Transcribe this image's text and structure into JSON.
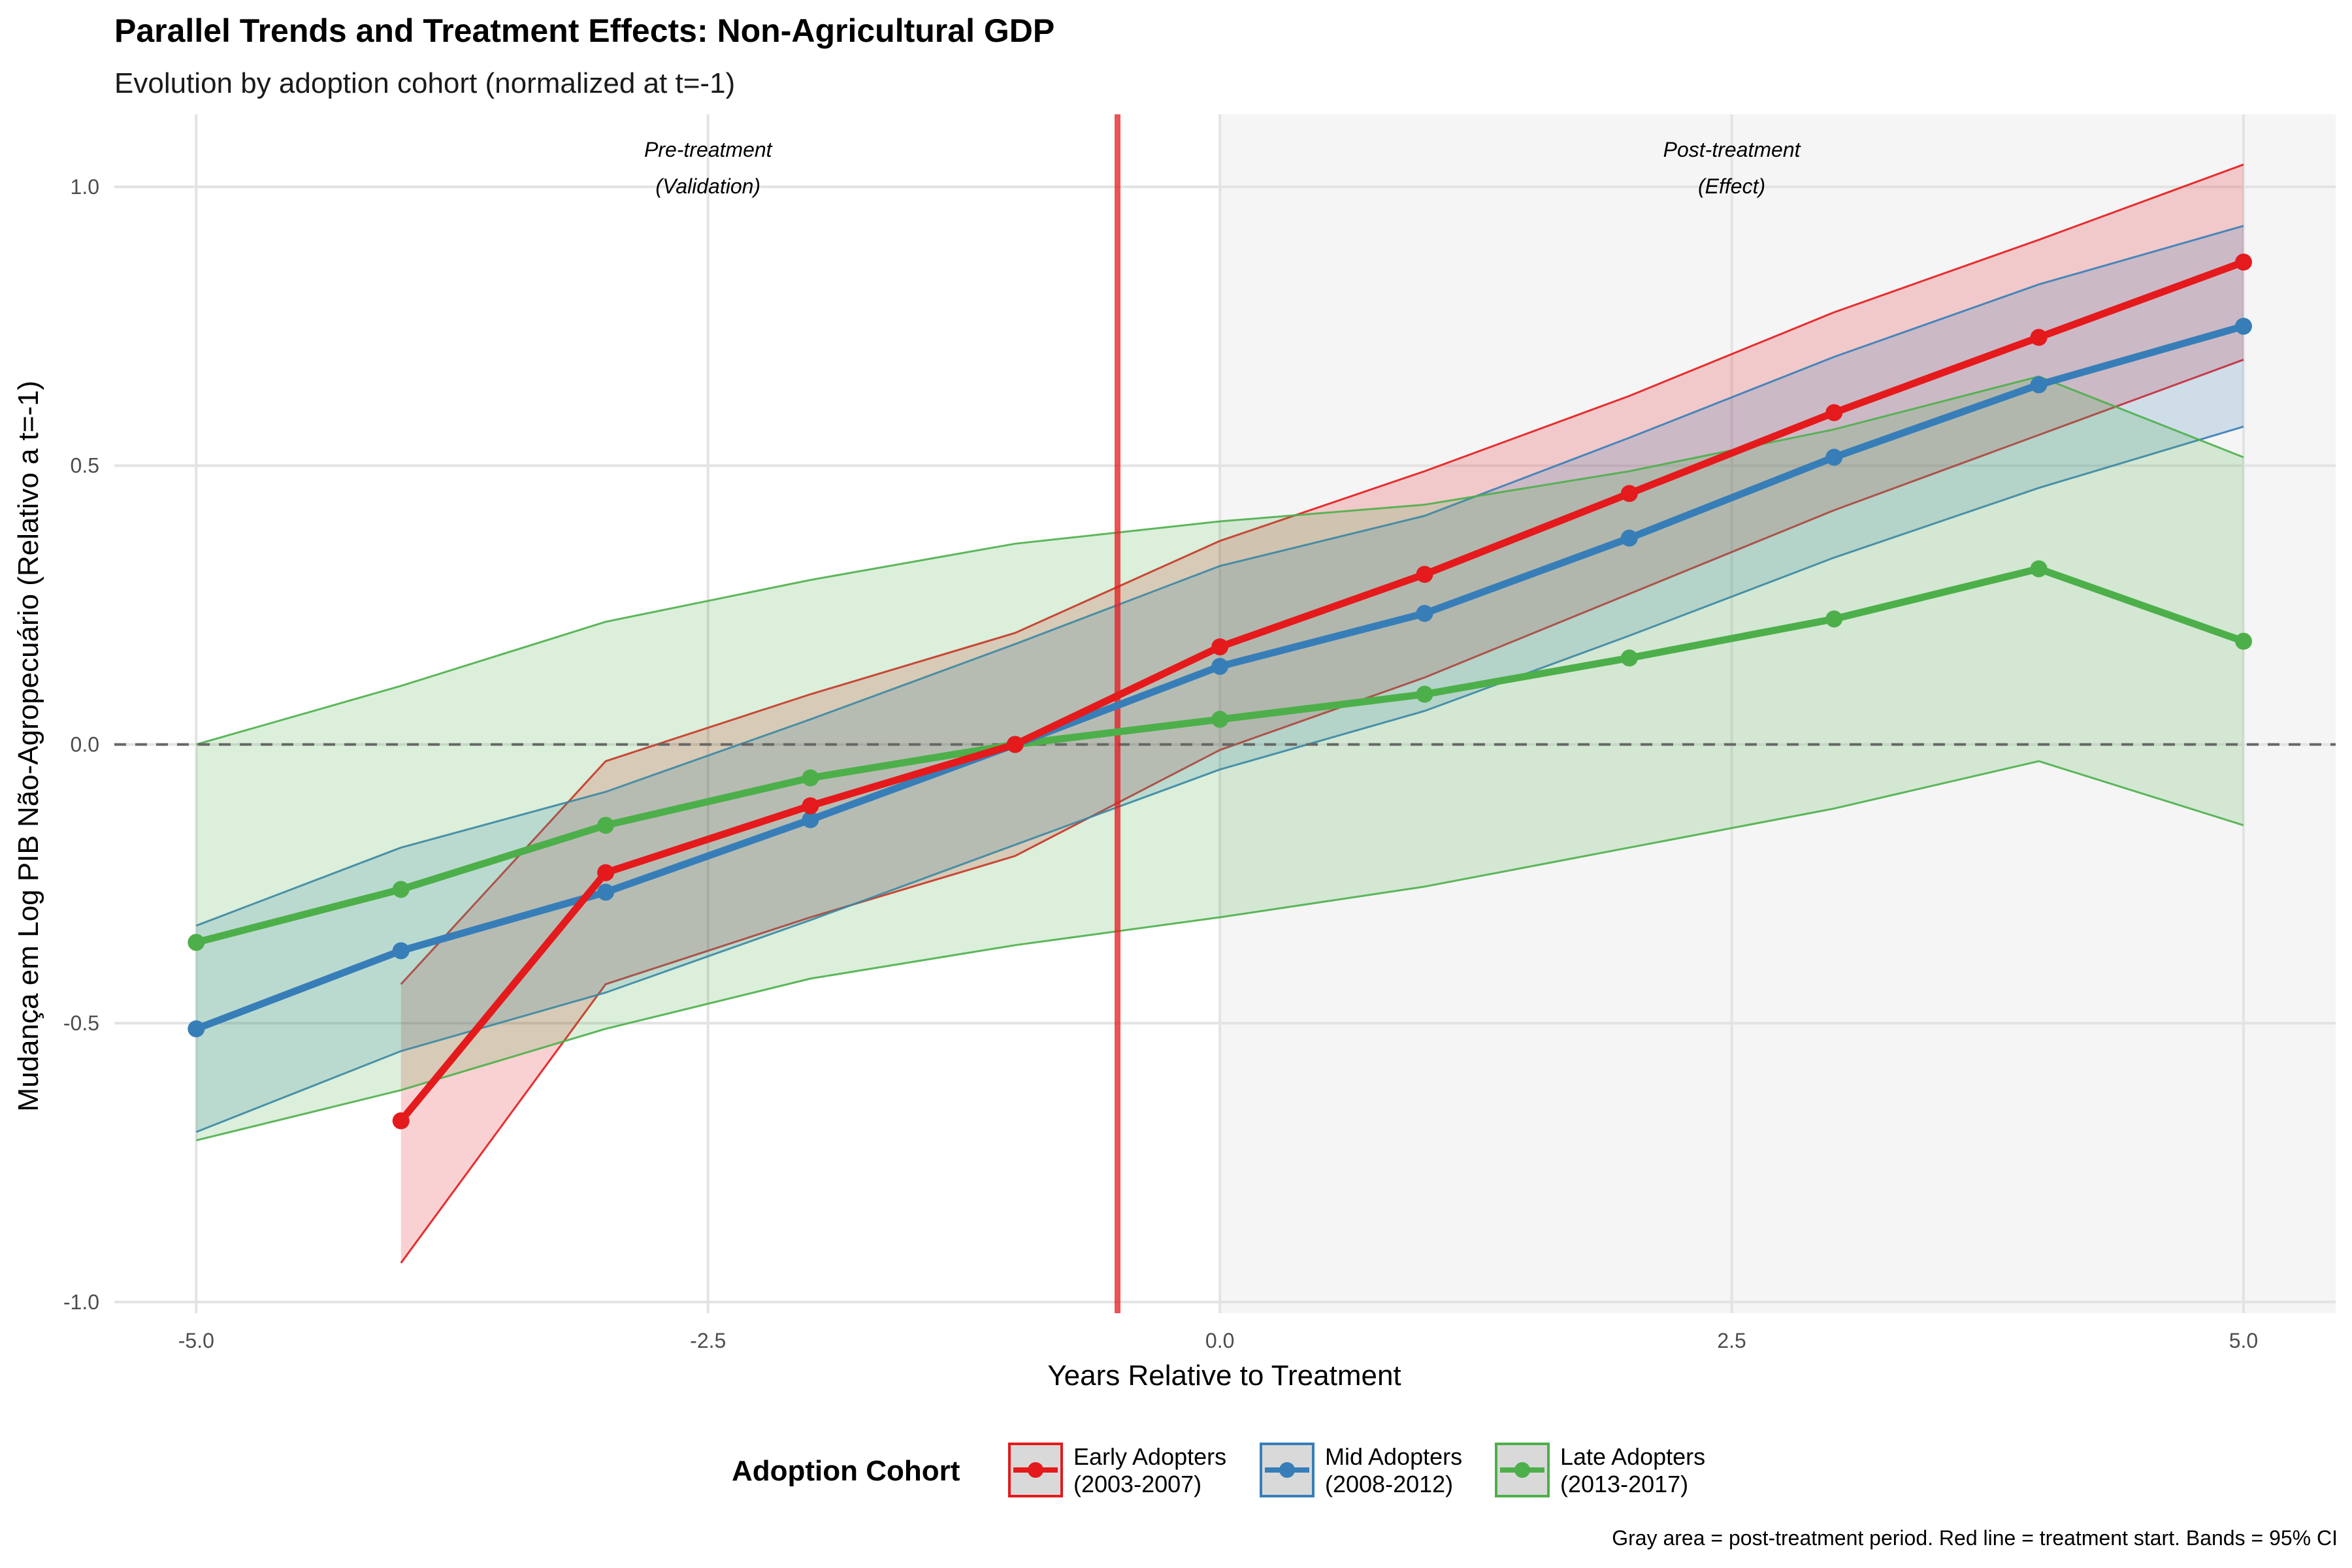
{
  "chart_data": {
    "type": "line",
    "title": "Parallel Trends and Treatment Effects: Non-Agricultural GDP",
    "subtitle": "Evolution by adoption cohort (normalized at t=-1)",
    "xlabel": "Years Relative to Treatment",
    "ylabel": "Mudança em Log PIB Não-Agropecuário (Relativo a t=-1)",
    "xlim": [
      -5.4,
      5.45
    ],
    "ylim": [
      -1.02,
      1.13
    ],
    "x_ticks": [
      -5.0,
      -2.5,
      0.0,
      2.5,
      5.0
    ],
    "x_tick_labels": [
      "-5.0",
      "-2.5",
      "0.0",
      "2.5",
      "5.0"
    ],
    "y_ticks": [
      -1.0,
      -0.5,
      0.0,
      0.5,
      1.0
    ],
    "y_tick_labels": [
      "-1.0",
      "-0.5",
      "0.0",
      "0.5",
      "1.0"
    ],
    "grid": true,
    "reference_line_y": 0,
    "treatment_line_x": -0.5,
    "post_treatment_shading_x": [
      0,
      5.45
    ],
    "annotations": [
      {
        "x": -2.5,
        "lines": [
          "Pre-treatment",
          "(Validation)"
        ]
      },
      {
        "x": 2.5,
        "lines": [
          "Post-treatment",
          "(Effect)"
        ]
      }
    ],
    "legend": {
      "title": "Adoption Cohort",
      "position": "bottom"
    },
    "caption": "Gray area = post-treatment period. Red line = treatment start. Bands = 95% CI",
    "series": [
      {
        "name": "Early Adopters\n(2003-2007)",
        "color": "#E41A1C",
        "band_line_color": "#E41A1C",
        "x": [
          -4,
          -3,
          -2,
          -1,
          0,
          1,
          2,
          3,
          4,
          5
        ],
        "y": [
          -0.675,
          -0.23,
          -0.11,
          0.0,
          0.175,
          0.305,
          0.45,
          0.595,
          0.73,
          0.865
        ],
        "lower": [
          -0.93,
          -0.43,
          -0.31,
          -0.2,
          -0.01,
          0.12,
          0.27,
          0.42,
          0.555,
          0.69
        ],
        "upper": [
          -0.43,
          -0.03,
          0.09,
          0.2,
          0.365,
          0.49,
          0.625,
          0.775,
          0.905,
          1.04
        ]
      },
      {
        "name": "Mid Adopters\n(2008-2012)",
        "color": "#377EB8",
        "band_line_color": "#377EB8",
        "x": [
          -5,
          -4,
          -3,
          -2,
          -1,
          0,
          1,
          2,
          3,
          4,
          5
        ],
        "y": [
          -0.51,
          -0.37,
          -0.265,
          -0.135,
          0.0,
          0.14,
          0.235,
          0.37,
          0.515,
          0.645,
          0.75
        ],
        "lower": [
          -0.695,
          -0.55,
          -0.445,
          -0.315,
          -0.18,
          -0.045,
          0.06,
          0.195,
          0.335,
          0.46,
          0.57
        ],
        "upper": [
          -0.325,
          -0.185,
          -0.085,
          0.045,
          0.18,
          0.32,
          0.41,
          0.55,
          0.695,
          0.825,
          0.93
        ]
      },
      {
        "name": "Late Adopters\n(2013-2017)",
        "color": "#4DAF4A",
        "band_line_color": "#4DAF4A",
        "x": [
          -5,
          -4,
          -3,
          -2,
          -1,
          0,
          1,
          2,
          3,
          4,
          5
        ],
        "y": [
          -0.355,
          -0.26,
          -0.145,
          -0.06,
          0.0,
          0.045,
          0.09,
          0.155,
          0.225,
          0.315,
          0.185
        ],
        "lower": [
          -0.71,
          -0.62,
          -0.51,
          -0.42,
          -0.36,
          -0.31,
          -0.255,
          -0.185,
          -0.115,
          -0.03,
          -0.145
        ],
        "upper": [
          0.0,
          0.105,
          0.22,
          0.295,
          0.36,
          0.4,
          0.43,
          0.49,
          0.565,
          0.66,
          0.515
        ]
      }
    ]
  }
}
